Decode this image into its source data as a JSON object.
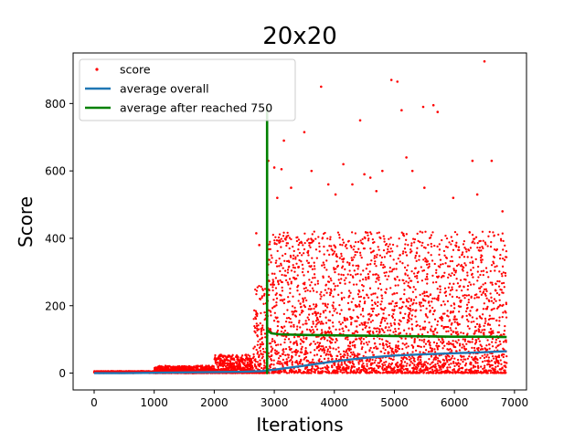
{
  "chart_data": {
    "type": "scatter",
    "title": "20x20",
    "xlabel": "Iterations",
    "ylabel": "Score",
    "xlim": [
      -350,
      7200
    ],
    "ylim": [
      -50,
      950
    ],
    "xticks": [
      0,
      1000,
      2000,
      3000,
      4000,
      5000,
      6000,
      7000
    ],
    "yticks": [
      0,
      200,
      400,
      600,
      800
    ],
    "xtick_labels": [
      "0",
      "1000",
      "2000",
      "3000",
      "4000",
      "5000",
      "6000",
      "7000"
    ],
    "ytick_labels": [
      "0",
      "200",
      "400",
      "600",
      "800"
    ],
    "grid": false,
    "legend_position": "top-left",
    "legend": [
      "score",
      "average overall",
      "average after reached 750"
    ],
    "series": [
      {
        "name": "score",
        "kind": "points",
        "color": "#ff0000",
        "x_range": [
          0,
          6870
        ],
        "sample_points": [
          [
            2700,
            415
          ],
          [
            2750,
            380
          ],
          [
            2900,
            630
          ],
          [
            3000,
            610
          ],
          [
            3050,
            520
          ],
          [
            3120,
            605
          ],
          [
            3160,
            690
          ],
          [
            3280,
            550
          ],
          [
            3500,
            715
          ],
          [
            3620,
            600
          ],
          [
            3780,
            850
          ],
          [
            3900,
            560
          ],
          [
            4020,
            530
          ],
          [
            4150,
            620
          ],
          [
            4300,
            560
          ],
          [
            4430,
            750
          ],
          [
            4500,
            590
          ],
          [
            4600,
            580
          ],
          [
            4700,
            540
          ],
          [
            4800,
            600
          ],
          [
            4950,
            870
          ],
          [
            5050,
            865
          ],
          [
            5120,
            780
          ],
          [
            5200,
            640
          ],
          [
            5300,
            600
          ],
          [
            5480,
            790
          ],
          [
            5650,
            795
          ],
          [
            5720,
            775
          ],
          [
            6300,
            630
          ],
          [
            6500,
            925
          ],
          [
            6620,
            630
          ],
          [
            6380,
            530
          ],
          [
            5980,
            520
          ],
          [
            5500,
            550
          ],
          [
            6800,
            480
          ]
        ]
      },
      {
        "name": "average overall",
        "kind": "line",
        "color": "#1f77b4",
        "x": [
          0,
          500,
          1000,
          1500,
          2000,
          2500,
          2800,
          3000,
          3500,
          4000,
          4500,
          5000,
          5500,
          6000,
          6500,
          6870
        ],
        "y": [
          0,
          0,
          1,
          2,
          3,
          4,
          6,
          10,
          22,
          35,
          45,
          52,
          56,
          59,
          62,
          65
        ]
      },
      {
        "name": "average after reached 750",
        "kind": "line",
        "color": "#008000",
        "x": [
          2880,
          2880,
          2880,
          2900,
          2950,
          3100,
          3500,
          4000,
          4500,
          5000,
          5500,
          6000,
          6500,
          6870
        ],
        "y": [
          790,
          0,
          120,
          125,
          118,
          115,
          113,
          112,
          111,
          110,
          109,
          108,
          108,
          107
        ]
      }
    ]
  }
}
